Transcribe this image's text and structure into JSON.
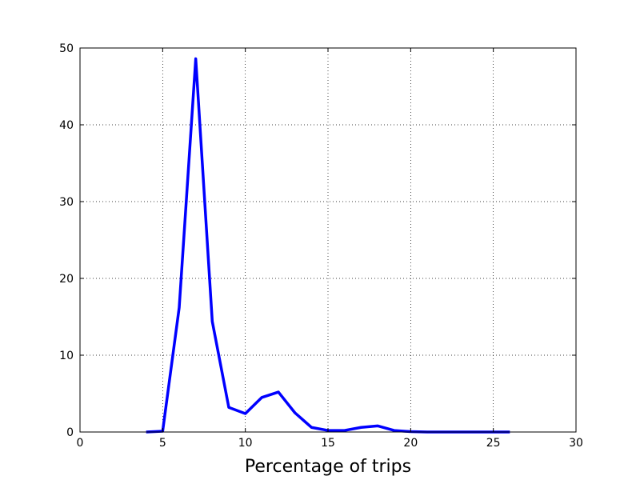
{
  "chart_data": {
    "type": "line",
    "title": "",
    "xlabel": "Percentage of trips",
    "ylabel": "",
    "xlim": [
      0,
      30
    ],
    "ylim": [
      0,
      50
    ],
    "xticks": [
      0,
      5,
      10,
      15,
      20,
      25,
      30
    ],
    "yticks": [
      0,
      10,
      20,
      30,
      40,
      50
    ],
    "grid": true,
    "series": [
      {
        "color": "#0000ff",
        "x": [
          4,
          5,
          6,
          7,
          8,
          9,
          10,
          11,
          12,
          13,
          14,
          15,
          16,
          17,
          18,
          19,
          20,
          21,
          22,
          23,
          24,
          25,
          26
        ],
        "y": [
          0.0,
          0.1,
          16.2,
          48.6,
          14.4,
          3.2,
          2.4,
          4.5,
          5.2,
          2.5,
          0.6,
          0.2,
          0.2,
          0.6,
          0.8,
          0.2,
          0.05,
          0.0,
          0.0,
          0.0,
          0.0,
          0.0,
          0.0
        ]
      }
    ]
  }
}
